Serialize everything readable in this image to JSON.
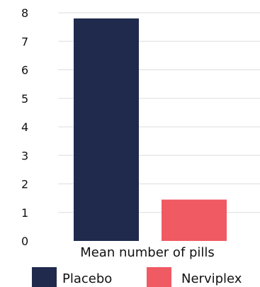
{
  "chart_data": {
    "type": "bar",
    "categories": [
      "Placebo",
      "Nerviplex"
    ],
    "values": [
      7.8,
      1.45
    ],
    "xlabel": "Mean number of pills",
    "ylim": [
      0,
      8
    ],
    "yticks": [
      "0",
      "1",
      "2",
      "3",
      "4",
      "5",
      "6",
      "7",
      "8"
    ],
    "grid": true,
    "legend_position": "bottom",
    "legend": [
      "Placebo",
      "Nerviplex"
    ],
    "colors": [
      "#1f2a4d",
      "#f05a63"
    ],
    "grid_color": "#dddddd"
  }
}
